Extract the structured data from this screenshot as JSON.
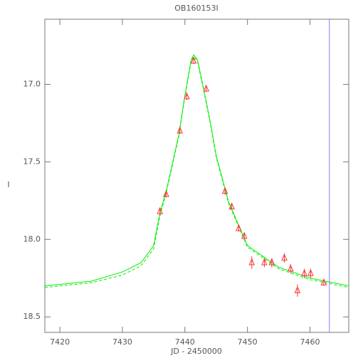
{
  "chart_data": {
    "type": "lightcurve",
    "title": "OB160153I",
    "x_label": "JD - 2450000",
    "y_label": "I",
    "xlim": [
      7417.6,
      7466.2
    ],
    "ylim": [
      18.6,
      16.58
    ],
    "xticks": [
      7420,
      7430,
      7440,
      7450,
      7460
    ],
    "yticks": [
      {
        "value": 17,
        "label": "17.0"
      },
      {
        "value": 17.5,
        "label": "17.5"
      },
      {
        "value": 18,
        "label": "18.0"
      },
      {
        "value": 18.5,
        "label": "18.5"
      }
    ],
    "inverted_y": true,
    "vline": {
      "x": 7463.1,
      "color": "#8080ff"
    },
    "points": {
      "color": "#ff3030",
      "x": [
        7436.0,
        7437.0,
        7439.2,
        7440.3,
        7441.4,
        7443.4,
        7446.4,
        7447.5,
        7448.6,
        7449.5,
        7450.7,
        7452.7,
        7453.9,
        7455.9,
        7456.9,
        7458.0,
        7459.1,
        7460.1,
        7462.2
      ],
      "values": [
        17.82,
        17.71,
        17.3,
        17.08,
        16.85,
        17.03,
        17.69,
        17.79,
        17.93,
        17.98,
        18.15,
        18.15,
        18.15,
        18.12,
        18.19,
        18.33,
        18.22,
        18.22,
        18.28
      ],
      "errors": [
        0.02,
        0.02,
        0.02,
        0.02,
        0.02,
        0.02,
        0.02,
        0.02,
        0.02,
        0.02,
        0.04,
        0.03,
        0.03,
        0.03,
        0.03,
        0.04,
        0.03,
        0.03,
        0.02
      ]
    },
    "series": [
      {
        "color": "#00ee00",
        "dash": false,
        "x": [
          7417.6,
          7420,
          7425,
          7430,
          7433,
          7435,
          7436,
          7437,
          7439,
          7440,
          7441,
          7441.4,
          7442,
          7443,
          7444,
          7445,
          7447,
          7450,
          7455,
          7460,
          7466.2
        ],
        "values": [
          18.3,
          18.29,
          18.27,
          18.21,
          18.15,
          18.04,
          17.83,
          17.69,
          17.33,
          17.07,
          16.84,
          16.81,
          16.84,
          17.03,
          17.23,
          17.46,
          17.76,
          18.04,
          18.18,
          18.25,
          18.3
        ]
      },
      {
        "color": "#00ee00",
        "dash": true,
        "x": [
          7417.6,
          7420,
          7425,
          7430,
          7433,
          7435,
          7436,
          7437,
          7439,
          7440,
          7441,
          7441.4,
          7442,
          7443,
          7444,
          7445,
          7447,
          7450,
          7455,
          7460,
          7466.2
        ],
        "values": [
          18.31,
          18.3,
          18.28,
          18.23,
          18.17,
          18.06,
          17.85,
          17.7,
          17.34,
          17.08,
          16.85,
          16.82,
          16.85,
          17.04,
          17.24,
          17.47,
          17.77,
          18.05,
          18.19,
          18.26,
          18.31
        ]
      }
    ]
  }
}
